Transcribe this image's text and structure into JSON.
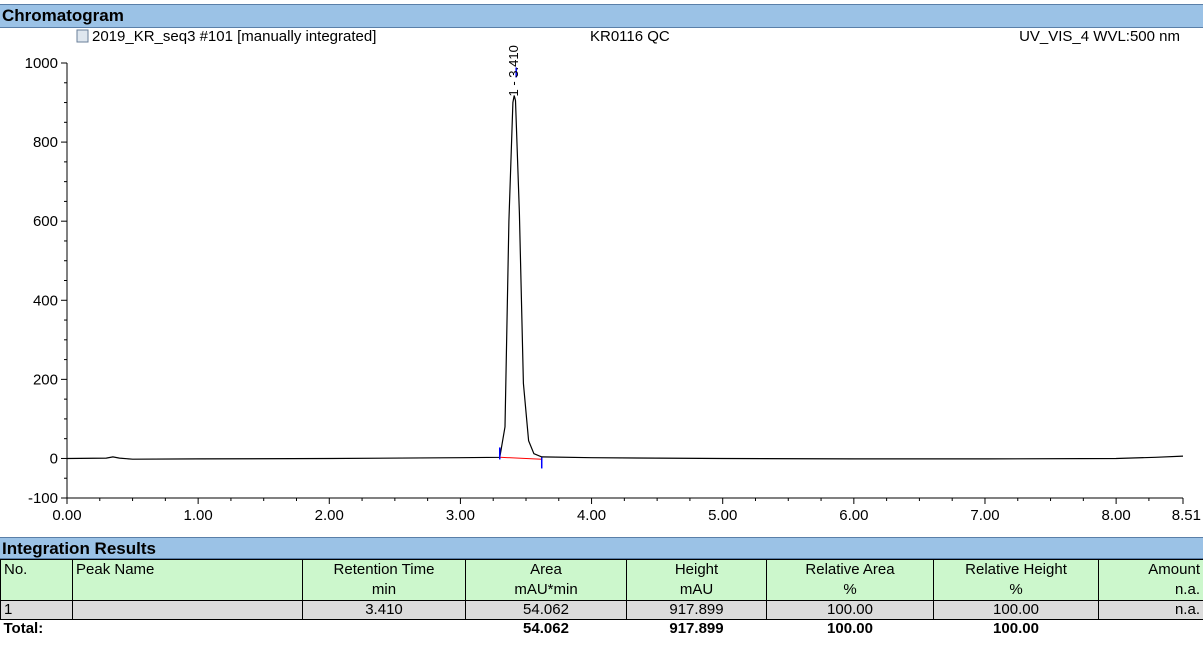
{
  "chromatogram": {
    "header": "Chromatogram",
    "file_label": "2019_KR_seq3 #101 [manually integrated]",
    "sample": "KR0116 QC",
    "channel": "UV_VIS_4 WVL:500 nm"
  },
  "chart_data": {
    "type": "line",
    "title": "",
    "xlabel": "",
    "ylabel": "",
    "xlim": [
      0,
      8.51
    ],
    "ylim": [
      -100,
      1000
    ],
    "x_ticks": [
      "0.00",
      "1.00",
      "2.00",
      "3.00",
      "4.00",
      "5.00",
      "6.00",
      "7.00",
      "8.00",
      "8.51"
    ],
    "y_ticks": [
      "1000",
      "800",
      "600",
      "400",
      "200",
      "0",
      "-100"
    ],
    "series": [
      {
        "x": [
          0,
          0.3,
          0.35,
          0.4,
          0.5,
          1.0,
          2.0,
          3.0,
          3.3,
          3.34,
          3.37,
          3.4,
          3.41,
          3.42,
          3.45,
          3.48,
          3.52,
          3.56,
          3.62,
          4.0,
          5.0,
          6.0,
          7.0,
          8.0,
          8.3,
          8.51
        ],
        "y": [
          0,
          1,
          4,
          1,
          -2,
          -1,
          0,
          2,
          3,
          80,
          600,
          900,
          917.899,
          905,
          620,
          190,
          45,
          12,
          4,
          2,
          0,
          -1,
          -1,
          0,
          3,
          6
        ],
        "color": "#000000"
      }
    ],
    "peak_label": {
      "x": 3.41,
      "text": "1 - 3.410"
    },
    "baseline": {
      "x": [
        3.3,
        3.62
      ],
      "y": [
        3,
        -2
      ],
      "color": "#ff0000"
    },
    "integration_marks": {
      "x": [
        3.3,
        3.41,
        3.62
      ],
      "color": "#0000ff"
    },
    "grid": false
  },
  "integration": {
    "header": "Integration Results",
    "columns": [
      {
        "name": "No.",
        "unit": ""
      },
      {
        "name": "Peak Name",
        "unit": ""
      },
      {
        "name": "Retention Time",
        "unit": "min"
      },
      {
        "name": "Area",
        "unit": "mAU*min"
      },
      {
        "name": "Height",
        "unit": "mAU"
      },
      {
        "name": "Relative Area",
        "unit": "%"
      },
      {
        "name": "Relative Height",
        "unit": "%"
      },
      {
        "name": "Amount",
        "unit": "n.a."
      }
    ],
    "rows": [
      {
        "no": "1",
        "peak_name": "",
        "retention_time": "3.410",
        "area": "54.062",
        "height": "917.899",
        "relative_area": "100.00",
        "relative_height": "100.00",
        "amount": "n.a."
      }
    ],
    "total": {
      "label": "Total:",
      "area": "54.062",
      "height": "917.899",
      "relative_area": "100.00",
      "relative_height": "100.00"
    }
  }
}
